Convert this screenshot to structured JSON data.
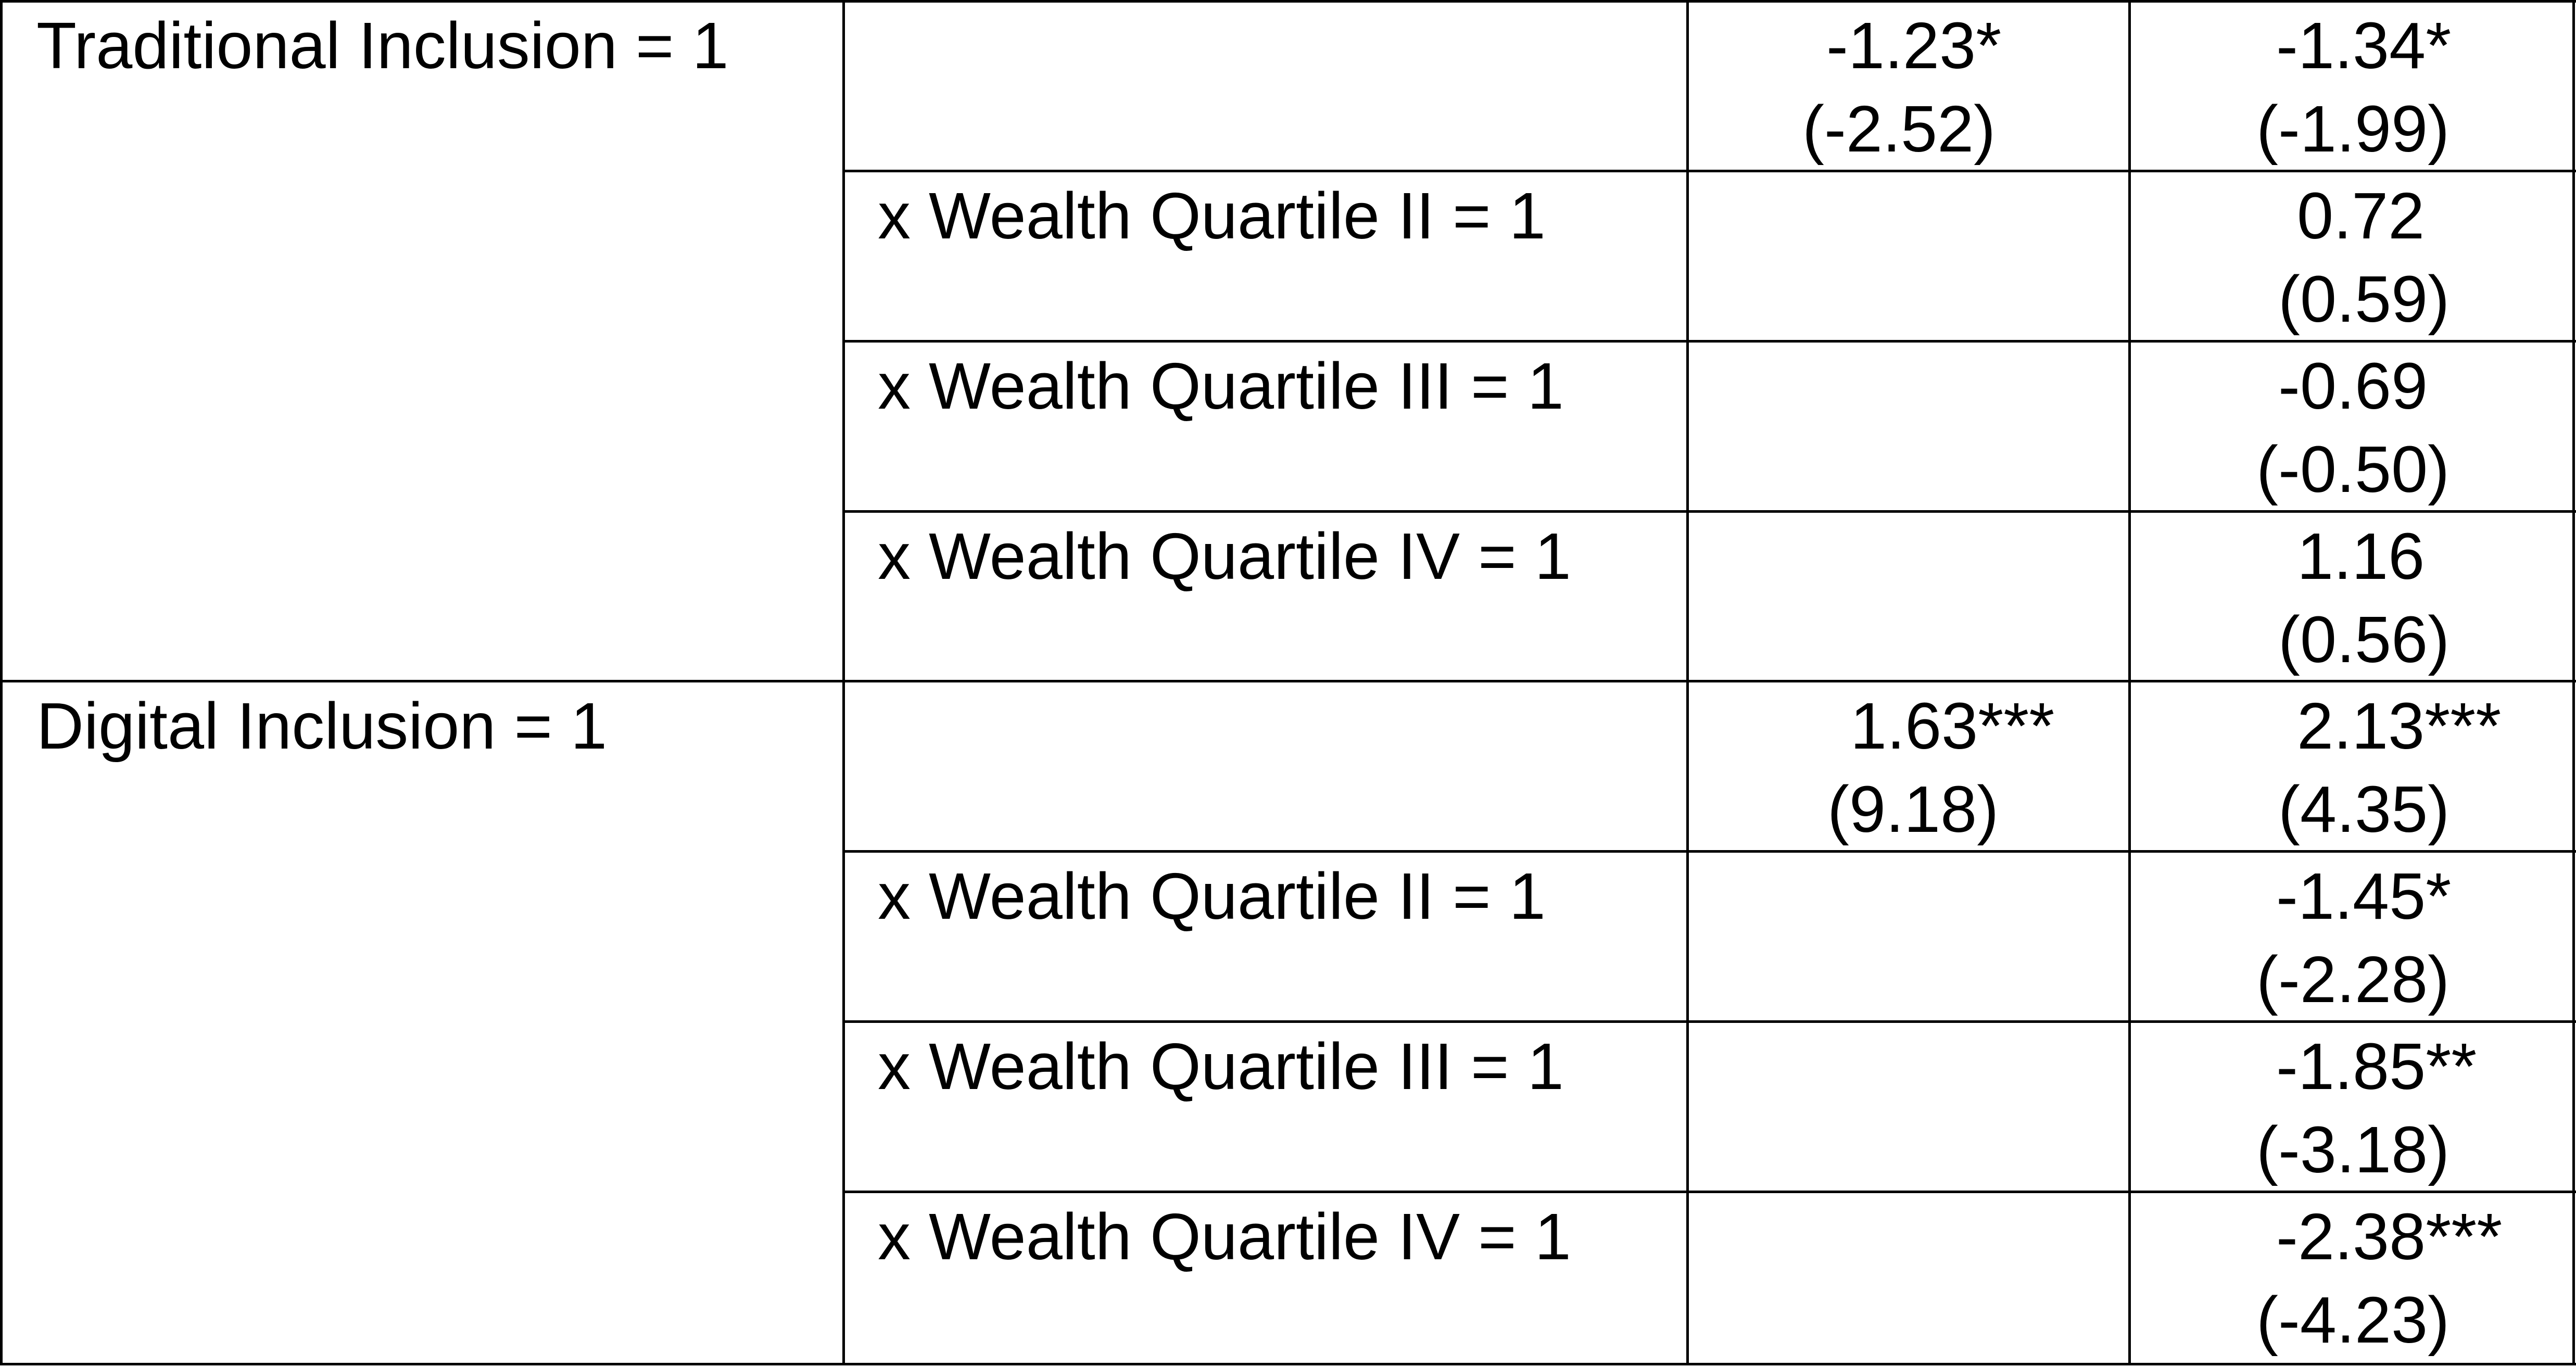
{
  "groups": [
    {
      "label": "Traditional Inclusion = 1",
      "rows": [
        {
          "sublabel": "",
          "col1": {
            "coef": "-1.23",
            "stars": "*",
            "t": "(-2.52)"
          },
          "col2": {
            "coef": "-1.34",
            "stars": "*",
            "t": "(-1.99)"
          }
        },
        {
          "sublabel": "x Wealth Quartile II = 1",
          "col1": null,
          "col2": {
            "coef": "0.72",
            "stars": "",
            "t": "(0.59)"
          }
        },
        {
          "sublabel": "x Wealth Quartile III = 1",
          "col1": null,
          "col2": {
            "coef": "-0.69",
            "stars": "",
            "t": "(-0.50)"
          }
        },
        {
          "sublabel": "x Wealth Quartile IV = 1",
          "col1": null,
          "col2": {
            "coef": "1.16",
            "stars": "",
            "t": "(0.56)"
          }
        }
      ]
    },
    {
      "label": "Digital Inclusion = 1",
      "rows": [
        {
          "sublabel": "",
          "col1": {
            "coef": "1.63",
            "stars": "***",
            "t": "(9.18)"
          },
          "col2": {
            "coef": "2.13",
            "stars": "***",
            "t": "(4.35)"
          }
        },
        {
          "sublabel": "x Wealth Quartile II = 1",
          "col1": null,
          "col2": {
            "coef": "-1.45",
            "stars": "*",
            "t": "(-2.28)"
          }
        },
        {
          "sublabel": "x Wealth Quartile III = 1",
          "col1": null,
          "col2": {
            "coef": "-1.85",
            "stars": "**",
            "t": "(-3.18)"
          }
        },
        {
          "sublabel": "x Wealth Quartile IV = 1",
          "col1": null,
          "col2": {
            "coef": "-2.38",
            "stars": "***",
            "t": "(-4.23)"
          }
        }
      ]
    }
  ]
}
